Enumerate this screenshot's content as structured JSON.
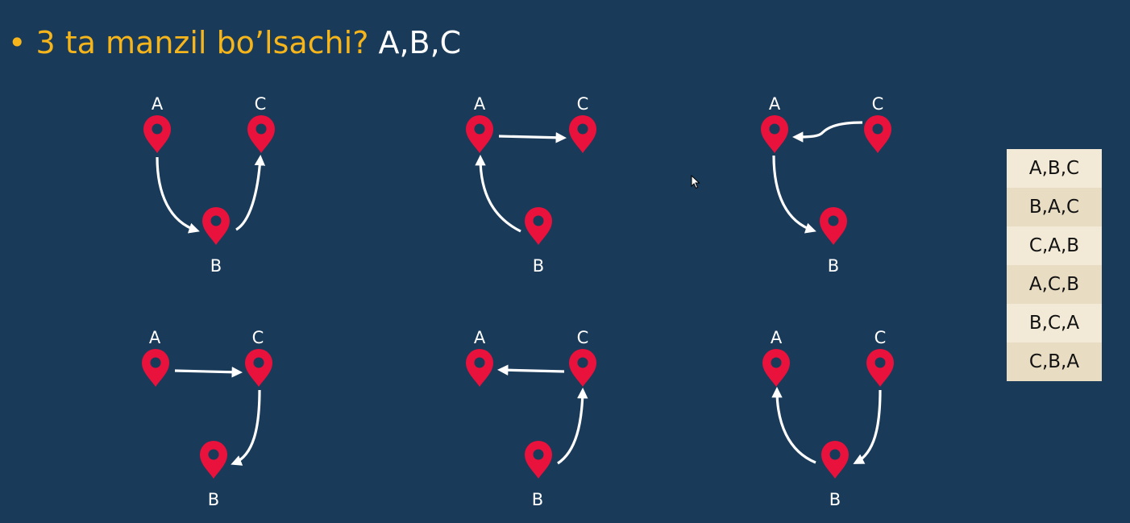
{
  "slide": {
    "bullet": "•",
    "question": "3 ta manzil bo’lsachi?",
    "letters": "A,B,C"
  },
  "diagrams": [
    {
      "labels": {
        "A": "A",
        "B": "B",
        "C": "C"
      },
      "order": [
        "A",
        "B",
        "C"
      ]
    },
    {
      "labels": {
        "A": "A",
        "B": "B",
        "C": "C"
      },
      "order": [
        "B",
        "A",
        "C"
      ]
    },
    {
      "labels": {
        "A": "A",
        "B": "B",
        "C": "C"
      },
      "order": [
        "C",
        "A",
        "B"
      ]
    },
    {
      "labels": {
        "A": "A",
        "B": "B",
        "C": "C"
      },
      "order": [
        "A",
        "C",
        "B"
      ]
    },
    {
      "labels": {
        "A": "A",
        "B": "B",
        "C": "C"
      },
      "order": [
        "B",
        "C",
        "A"
      ]
    },
    {
      "labels": {
        "A": "A",
        "B": "B",
        "C": "C"
      },
      "order": [
        "C",
        "B",
        "A"
      ]
    }
  ],
  "permutations": [
    "A,B,C",
    "B,A,C",
    "C,A,B",
    "A,C,B",
    "B,C,A",
    "C,B,A"
  ],
  "colors": {
    "background": "#193a59",
    "accent": "#f5b51b",
    "pin": "#e8123c",
    "arrow": "#ffffff",
    "list_bg": "#f2ead6"
  },
  "icons": {
    "pin": "location-pin-icon",
    "cursor": "mouse-cursor-icon"
  }
}
